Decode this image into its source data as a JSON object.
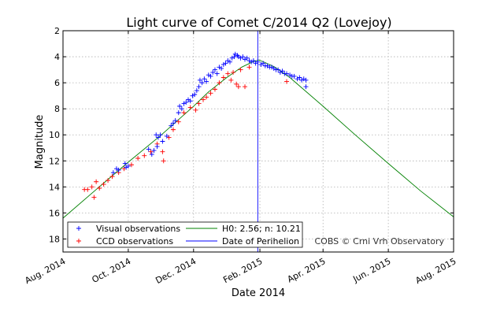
{
  "chart_data": {
    "type": "scatter",
    "title": "Light curve of Comet C/2014 Q2 (Lovejoy)",
    "xlabel": "Date 2014",
    "ylabel": "Magnitude",
    "x_ticks": [
      "Aug. 2014",
      "Oct. 2014",
      "Dec. 2014",
      "Feb. 2015",
      "Apr. 2015",
      "Jun. 2015",
      "Aug. 2015"
    ],
    "xlim": [
      "2014-08-01",
      "2015-08-01"
    ],
    "y_ticks": [
      2,
      4,
      6,
      8,
      10,
      12,
      14,
      16,
      18
    ],
    "ylim": [
      19,
      2
    ],
    "y_inverted": true,
    "grid": true,
    "legend_position": "lower-left",
    "credit": "COBS © Crni Vrh Observatory",
    "colors": {
      "visual": "#0000ff",
      "ccd": "#ff0000",
      "model": "#008000",
      "perihelion": "#0000ff"
    },
    "series": [
      {
        "name": "Visual observations",
        "marker": "+",
        "points": [
          [
            "2014-09-17",
            12.9
          ],
          [
            "2014-09-20",
            12.6
          ],
          [
            "2014-09-22",
            12.7
          ],
          [
            "2014-09-28",
            12.2
          ],
          [
            "2014-09-29",
            12.5
          ],
          [
            "2014-10-01",
            12.4
          ],
          [
            "2014-10-20",
            11.1
          ],
          [
            "2014-10-23",
            11.5
          ],
          [
            "2014-10-25",
            11.2
          ],
          [
            "2014-10-27",
            10.0
          ],
          [
            "2014-10-28",
            10.9
          ],
          [
            "2014-10-29",
            10.2
          ],
          [
            "2014-10-31",
            10.0
          ],
          [
            "2014-11-02",
            10.5
          ],
          [
            "2014-11-06",
            10.1
          ],
          [
            "2014-11-10",
            9.3
          ],
          [
            "2014-11-12",
            9.1
          ],
          [
            "2014-11-14",
            8.9
          ],
          [
            "2014-11-17",
            8.3
          ],
          [
            "2014-11-18",
            7.8
          ],
          [
            "2014-11-20",
            8.0
          ],
          [
            "2014-11-22",
            7.6
          ],
          [
            "2014-11-24",
            7.5
          ],
          [
            "2014-11-26",
            7.3
          ],
          [
            "2014-11-28",
            7.4
          ],
          [
            "2014-11-30",
            7.0
          ],
          [
            "2014-12-02",
            6.9
          ],
          [
            "2014-12-04",
            6.6
          ],
          [
            "2014-12-06",
            6.3
          ],
          [
            "2014-12-07",
            5.8
          ],
          [
            "2014-12-09",
            6.0
          ],
          [
            "2014-12-11",
            5.7
          ],
          [
            "2014-12-13",
            5.9
          ],
          [
            "2014-12-15",
            5.4
          ],
          [
            "2014-12-17",
            5.5
          ],
          [
            "2014-12-19",
            5.2
          ],
          [
            "2014-12-21",
            5.0
          ],
          [
            "2014-12-23",
            5.3
          ],
          [
            "2014-12-25",
            4.8
          ],
          [
            "2014-12-27",
            4.9
          ],
          [
            "2014-12-29",
            4.6
          ],
          [
            "2014-12-31",
            4.5
          ],
          [
            "2015-01-02",
            4.3
          ],
          [
            "2015-01-04",
            4.4
          ],
          [
            "2015-01-06",
            4.1
          ],
          [
            "2015-01-08",
            4.0
          ],
          [
            "2015-01-09",
            3.8
          ],
          [
            "2015-01-11",
            3.9
          ],
          [
            "2015-01-12",
            4.0
          ],
          [
            "2015-01-14",
            4.1
          ],
          [
            "2015-01-16",
            4.0
          ],
          [
            "2015-01-18",
            4.2
          ],
          [
            "2015-01-20",
            4.1
          ],
          [
            "2015-01-22",
            4.3
          ],
          [
            "2015-01-24",
            4.4
          ],
          [
            "2015-01-26",
            4.3
          ],
          [
            "2015-01-28",
            4.5
          ],
          [
            "2015-01-30",
            4.4
          ],
          [
            "2015-02-02",
            4.6
          ],
          [
            "2015-02-04",
            4.5
          ],
          [
            "2015-02-06",
            4.7
          ],
          [
            "2015-02-08",
            4.7
          ],
          [
            "2015-02-10",
            4.8
          ],
          [
            "2015-02-12",
            4.8
          ],
          [
            "2015-02-14",
            4.9
          ],
          [
            "2015-02-16",
            5.0
          ],
          [
            "2015-02-18",
            5.0
          ],
          [
            "2015-02-20",
            5.2
          ],
          [
            "2015-02-22",
            5.1
          ],
          [
            "2015-02-24",
            5.3
          ],
          [
            "2015-02-26",
            5.3
          ],
          [
            "2015-03-01",
            5.4
          ],
          [
            "2015-03-03",
            5.5
          ],
          [
            "2015-03-05",
            5.5
          ],
          [
            "2015-03-08",
            5.7
          ],
          [
            "2015-03-10",
            5.6
          ],
          [
            "2015-03-12",
            5.8
          ],
          [
            "2015-03-14",
            5.7
          ],
          [
            "2015-03-16",
            5.8
          ],
          [
            "2015-03-16",
            6.3
          ]
        ]
      },
      {
        "name": "CCD observations",
        "marker": "+",
        "points": [
          [
            "2014-08-21",
            14.2
          ],
          [
            "2014-08-24",
            14.2
          ],
          [
            "2014-08-28",
            14.0
          ],
          [
            "2014-08-30",
            14.8
          ],
          [
            "2014-09-01",
            13.6
          ],
          [
            "2014-09-04",
            14.1
          ],
          [
            "2014-09-08",
            13.8
          ],
          [
            "2014-09-12",
            13.5
          ],
          [
            "2014-09-16",
            13.2
          ],
          [
            "2014-09-22",
            12.9
          ],
          [
            "2014-09-27",
            12.6
          ],
          [
            "2014-10-04",
            12.3
          ],
          [
            "2014-10-10",
            11.8
          ],
          [
            "2014-10-16",
            11.6
          ],
          [
            "2014-10-22",
            11.3
          ],
          [
            "2014-10-28",
            10.7
          ],
          [
            "2014-11-02",
            11.3
          ],
          [
            "2014-11-03",
            12.0
          ],
          [
            "2014-11-08",
            10.2
          ],
          [
            "2014-11-12",
            9.6
          ],
          [
            "2014-11-17",
            9.0
          ],
          [
            "2014-11-22",
            8.3
          ],
          [
            "2014-11-28",
            7.9
          ],
          [
            "2014-12-03",
            8.1
          ],
          [
            "2014-12-06",
            7.6
          ],
          [
            "2014-12-10",
            7.3
          ],
          [
            "2014-12-13",
            7.1
          ],
          [
            "2014-12-17",
            6.8
          ],
          [
            "2014-12-21",
            6.5
          ],
          [
            "2014-12-25",
            6.0
          ],
          [
            "2014-12-29",
            5.6
          ],
          [
            "2015-01-02",
            5.3
          ],
          [
            "2015-01-05",
            5.8
          ],
          [
            "2015-01-07",
            5.2
          ],
          [
            "2015-01-10",
            6.1
          ],
          [
            "2015-01-12",
            6.3
          ],
          [
            "2015-01-14",
            5.0
          ],
          [
            "2015-01-18",
            6.3
          ],
          [
            "2015-01-22",
            4.8
          ],
          [
            "2015-02-26",
            5.9
          ]
        ]
      },
      {
        "name": "H0: 2.56; n: 10.21",
        "marker": "line",
        "points": [
          [
            "2014-08-01",
            16.4
          ],
          [
            "2014-09-01",
            14.2
          ],
          [
            "2014-10-01",
            12.1
          ],
          [
            "2014-11-01",
            10.0
          ],
          [
            "2014-12-01",
            7.8
          ],
          [
            "2014-12-15",
            6.7
          ],
          [
            "2015-01-01",
            5.6
          ],
          [
            "2015-01-15",
            4.8
          ],
          [
            "2015-01-25",
            4.4
          ],
          [
            "2015-01-31",
            4.25
          ],
          [
            "2015-02-06",
            4.45
          ],
          [
            "2015-02-15",
            4.8
          ],
          [
            "2015-03-01",
            5.6
          ],
          [
            "2015-04-01",
            7.8
          ],
          [
            "2015-05-01",
            10.0
          ],
          [
            "2015-06-01",
            12.2
          ],
          [
            "2015-07-01",
            14.3
          ],
          [
            "2015-08-01",
            16.3
          ]
        ]
      },
      {
        "name": "Date of Perihelion",
        "marker": "vline",
        "x": "2015-01-30"
      }
    ]
  }
}
